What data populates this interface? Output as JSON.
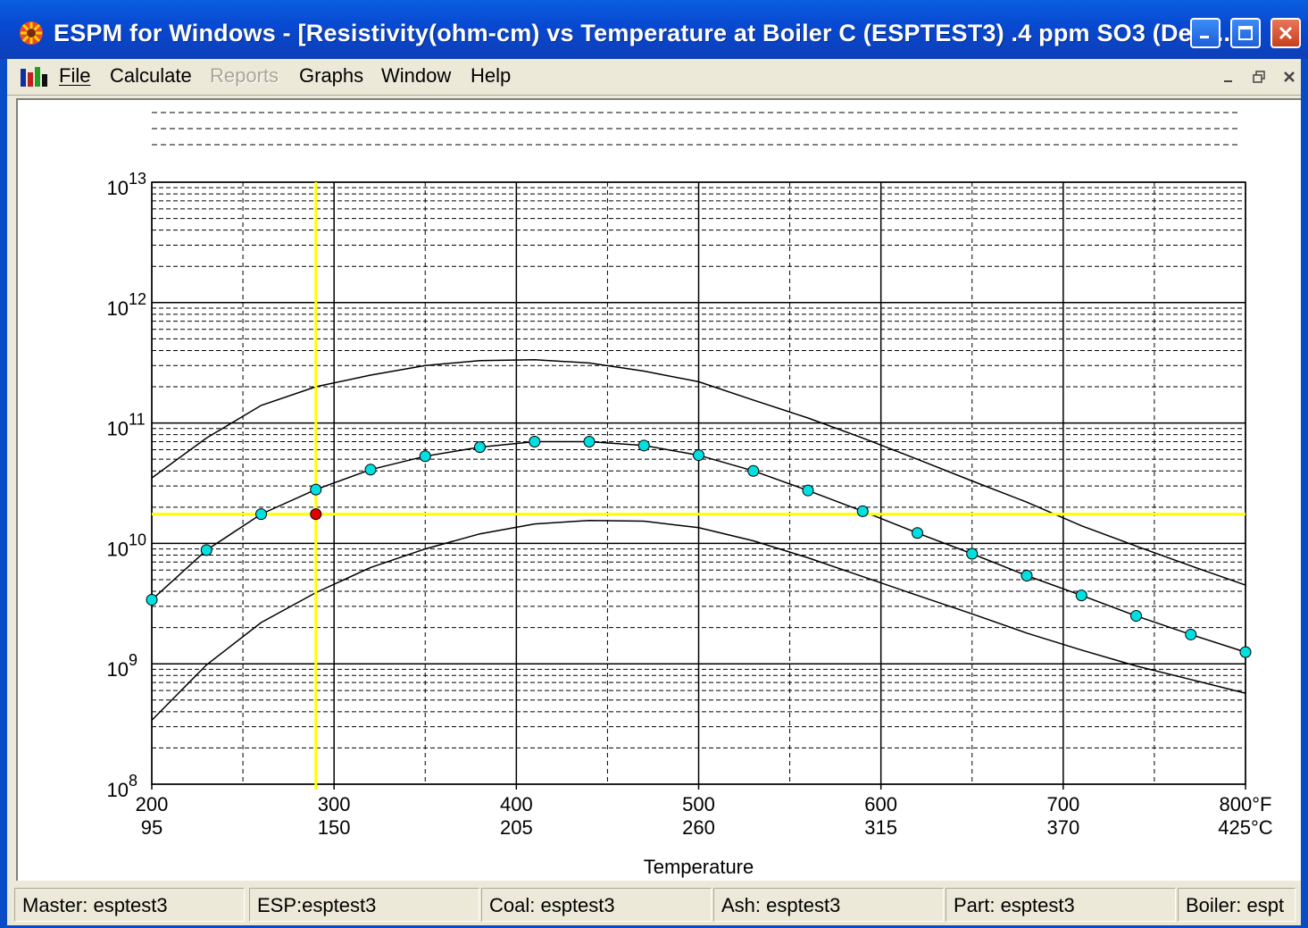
{
  "window": {
    "title": "ESPM for Windows - [Resistivity(ohm-cm) vs Temperature at Boiler C  (ESPTEST3)  .4 ppm SO3 (Dew...",
    "icons": {
      "app": "espm-app-icon",
      "minimize": "minimize-icon",
      "maximize": "maximize-icon",
      "close": "close-icon"
    }
  },
  "menu": {
    "icon": "graph-bars-icon",
    "items": [
      {
        "label": "File",
        "enabled": true
      },
      {
        "label": "Calculate",
        "enabled": true
      },
      {
        "label": "Reports",
        "enabled": false
      },
      {
        "label": "Graphs",
        "enabled": true
      },
      {
        "label": "Window",
        "enabled": true
      },
      {
        "label": "Help",
        "enabled": true
      }
    ],
    "mdi_icons": [
      "mdi-minimize-icon",
      "mdi-restore-icon",
      "mdi-close-icon"
    ]
  },
  "status": [
    "Master: esptest3",
    "ESP:esptest3",
    "Coal: esptest3",
    "Ash: esptest3",
    "Part: esptest3",
    "Boiler: espt"
  ],
  "chart_data": {
    "type": "line",
    "xlabel": "Temperature",
    "ylabel": "",
    "xlim": [
      200,
      800
    ],
    "ylim": [
      100000000,
      10000000000000
    ],
    "yscale": "log",
    "grid": true,
    "x_ticks": [
      {
        "f": "200",
        "c": "95",
        "value": 200
      },
      {
        "f": "300",
        "c": "150",
        "value": 300
      },
      {
        "f": "400",
        "c": "205",
        "value": 400
      },
      {
        "f": "500",
        "c": "260",
        "value": 500
      },
      {
        "f": "600",
        "c": "315",
        "value": 600
      },
      {
        "f": "700",
        "c": "370",
        "value": 700
      },
      {
        "f": "800°F",
        "c": "425°C",
        "value": 800
      }
    ],
    "y_ticks": [
      {
        "base": "10",
        "exp": "8",
        "value": 100000000
      },
      {
        "base": "10",
        "exp": "9",
        "value": 1000000000
      },
      {
        "base": "10",
        "exp": "10",
        "value": 10000000000
      },
      {
        "base": "10",
        "exp": "11",
        "value": 100000000000
      },
      {
        "base": "10",
        "exp": "12",
        "value": 1000000000000
      },
      {
        "base": "10",
        "exp": "13",
        "value": 10000000000000
      }
    ],
    "series": [
      {
        "role": "upper-bound",
        "color": "#000000",
        "markers": false,
        "x": [
          200,
          230,
          260,
          290,
          320,
          350,
          380,
          410,
          440,
          470,
          500,
          530,
          560,
          590,
          620,
          650,
          680,
          710,
          740,
          770,
          800
        ],
        "y": [
          35000000000,
          75000000000,
          140000000000,
          200000000000,
          250000000000,
          300000000000,
          330000000000,
          335000000000,
          315000000000,
          270000000000,
          220000000000,
          155000000000,
          110000000000,
          75000000000,
          50000000000,
          33000000000,
          22000000000,
          14000000000,
          9500000000,
          6500000000,
          4500000000
        ]
      },
      {
        "role": "calculated",
        "color": "#000000",
        "markers": true,
        "marker_color": "#00E0E0",
        "x": [
          200,
          230,
          260,
          290,
          320,
          350,
          380,
          410,
          440,
          470,
          500,
          530,
          560,
          590,
          620,
          650,
          680,
          710,
          740,
          770,
          800
        ],
        "y": [
          3400000000,
          8800000000,
          17500000000,
          28000000000,
          41000000000,
          53000000000,
          63000000000,
          70000000000,
          70000000000,
          65000000000,
          54000000000,
          40000000000,
          27500000000,
          18500000000,
          12200000000,
          8200000000,
          5400000000,
          3700000000,
          2500000000,
          1750000000,
          1250000000
        ]
      },
      {
        "role": "lower-bound",
        "color": "#000000",
        "markers": false,
        "x": [
          200,
          230,
          260,
          290,
          320,
          350,
          380,
          410,
          440,
          470,
          500,
          530,
          560,
          590,
          620,
          650,
          680,
          710,
          740,
          770,
          800
        ],
        "y": [
          340000000,
          980000000,
          2200000000,
          3900000000,
          6300000000,
          9000000000,
          12000000000,
          14500000000,
          15500000000,
          15300000000,
          13500000000,
          10500000000,
          7600000000,
          5300000000,
          3700000000,
          2600000000,
          1800000000,
          1300000000,
          960000000,
          740000000,
          570000000
        ]
      }
    ],
    "cursor": {
      "x": 290,
      "y": 17500000000,
      "color": "#FFFF00",
      "point_color": "#E00000"
    }
  }
}
